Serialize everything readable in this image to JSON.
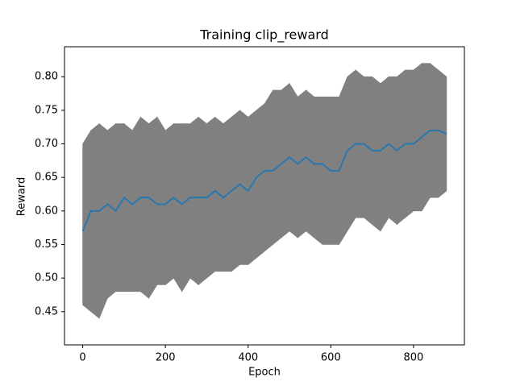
{
  "chart_data": {
    "type": "line",
    "title": "Training clip_reward",
    "x_label": "Epoch",
    "y_label": "Reward",
    "x": [
      0,
      20,
      40,
      60,
      80,
      100,
      120,
      140,
      160,
      180,
      200,
      220,
      240,
      260,
      280,
      300,
      320,
      340,
      360,
      380,
      400,
      420,
      440,
      460,
      480,
      500,
      520,
      540,
      560,
      580,
      600,
      620,
      640,
      660,
      680,
      700,
      720,
      740,
      760,
      780,
      800,
      820,
      840,
      860,
      880
    ],
    "band": {
      "color": "#808080",
      "upper": [
        0.7,
        0.72,
        0.73,
        0.72,
        0.73,
        0.73,
        0.72,
        0.74,
        0.73,
        0.74,
        0.72,
        0.73,
        0.73,
        0.73,
        0.74,
        0.73,
        0.74,
        0.73,
        0.74,
        0.75,
        0.74,
        0.75,
        0.76,
        0.78,
        0.78,
        0.79,
        0.77,
        0.78,
        0.77,
        0.77,
        0.77,
        0.77,
        0.8,
        0.81,
        0.8,
        0.8,
        0.79,
        0.8,
        0.8,
        0.81,
        0.81,
        0.82,
        0.82,
        0.81,
        0.8
      ],
      "lower": [
        0.46,
        0.45,
        0.44,
        0.47,
        0.48,
        0.48,
        0.48,
        0.48,
        0.47,
        0.49,
        0.49,
        0.5,
        0.48,
        0.5,
        0.49,
        0.5,
        0.51,
        0.51,
        0.51,
        0.52,
        0.52,
        0.53,
        0.54,
        0.55,
        0.56,
        0.57,
        0.56,
        0.57,
        0.56,
        0.55,
        0.55,
        0.55,
        0.57,
        0.59,
        0.59,
        0.58,
        0.57,
        0.59,
        0.58,
        0.59,
        0.6,
        0.6,
        0.62,
        0.62,
        0.63
      ]
    },
    "series": [
      {
        "color": "#1f77b4",
        "values": [
          0.57,
          0.6,
          0.6,
          0.61,
          0.6,
          0.62,
          0.61,
          0.62,
          0.62,
          0.61,
          0.61,
          0.62,
          0.61,
          0.62,
          0.62,
          0.62,
          0.63,
          0.62,
          0.63,
          0.64,
          0.63,
          0.65,
          0.66,
          0.66,
          0.67,
          0.68,
          0.67,
          0.68,
          0.67,
          0.67,
          0.66,
          0.66,
          0.69,
          0.7,
          0.7,
          0.69,
          0.69,
          0.7,
          0.69,
          0.7,
          0.7,
          0.71,
          0.72,
          0.72,
          0.715
        ]
      }
    ],
    "xlim": [
      -44,
      923
    ],
    "ylim": [
      0.4005,
      0.8447
    ],
    "xticks": [
      0,
      200,
      400,
      600,
      800
    ],
    "yticks": [
      0.45,
      {
        "value": 0.5,
        "label": "0.50"
      },
      0.55,
      {
        "value": 0.6,
        "label": "0.60"
      },
      0.65,
      {
        "value": 0.7,
        "label": "0.70"
      },
      0.75,
      {
        "value": 0.8,
        "label": "0.80"
      }
    ],
    "grid": false
  }
}
